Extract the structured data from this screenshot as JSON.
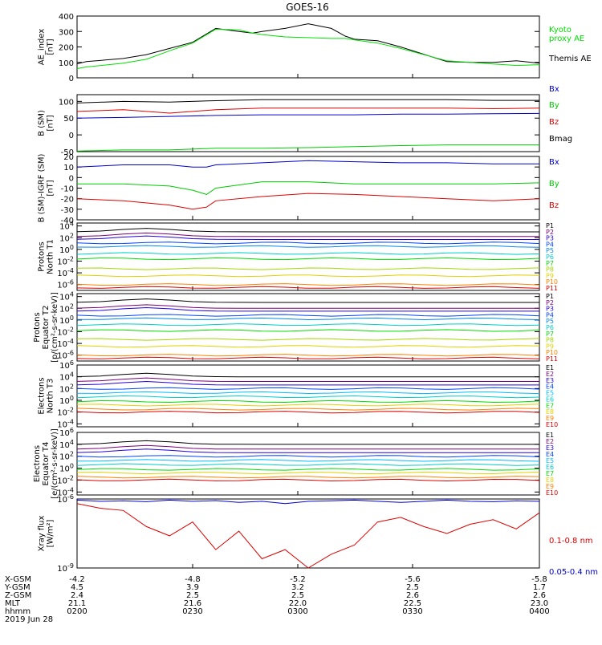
{
  "title": "GOES-16",
  "chart_data": [
    {
      "type": "line",
      "panel": "ae",
      "ylabel": [
        "AE_index",
        "[nT]"
      ],
      "ylim": [
        0,
        400
      ],
      "yticks": [
        "0",
        "100",
        "200",
        "300",
        "400"
      ],
      "x": [
        0,
        0.02,
        0.1,
        0.15,
        0.2,
        0.25,
        0.3,
        0.35,
        0.38,
        0.4,
        0.45,
        0.5,
        0.55,
        0.58,
        0.6,
        0.65,
        0.7,
        0.8,
        0.85,
        0.9,
        0.95,
        1
      ],
      "series": [
        {
          "name": "Themis AE",
          "color": "#000000",
          "labelY": 76,
          "values": [
            90,
            105,
            125,
            150,
            190,
            230,
            320,
            300,
            290,
            300,
            320,
            350,
            320,
            270,
            250,
            240,
            200,
            105,
            100,
            100,
            110,
            95
          ]
        },
        {
          "name": "Kyoto proxy AE",
          "color": "#00e000",
          "labelY": 40,
          "labelLines": [
            "Kyoto",
            "proxy AE"
          ],
          "values": [
            60,
            70,
            95,
            120,
            175,
            225,
            315,
            310,
            290,
            280,
            265,
            260,
            255,
            255,
            245,
            225,
            190,
            110,
            100,
            90,
            80,
            85
          ]
        }
      ]
    },
    {
      "type": "line",
      "panel": "bsm",
      "ylabel": [
        "B (SM)",
        "[nT]"
      ],
      "ylim": [
        -50,
        120
      ],
      "yticks": [
        "-50",
        "0",
        "50",
        "100"
      ],
      "x": [
        0,
        0.1,
        0.2,
        0.3,
        0.4,
        0.5,
        0.6,
        0.7,
        0.8,
        0.9,
        1
      ],
      "series": [
        {
          "name": "Bx",
          "color": "#0000cc",
          "labelY": 114,
          "values": [
            50,
            52,
            55,
            58,
            60,
            60,
            60,
            62,
            62,
            63,
            64
          ]
        },
        {
          "name": "By",
          "color": "#00cc00",
          "labelY": 134,
          "values": [
            -48,
            -45,
            -45,
            -40,
            -40,
            -38,
            -35,
            -32,
            -30,
            -30,
            -30
          ]
        },
        {
          "name": "Bz",
          "color": "#dd0000",
          "labelY": 155,
          "values": [
            70,
            75,
            65,
            75,
            80,
            80,
            80,
            80,
            80,
            78,
            80
          ]
        },
        {
          "name": "Bmag",
          "color": "#000000",
          "labelY": 176,
          "values": [
            95,
            100,
            98,
            102,
            105,
            105,
            105,
            105,
            105,
            103,
            103
          ]
        }
      ]
    },
    {
      "type": "line",
      "panel": "digrf",
      "ylabel": [
        "B (SM)-IGRF (SM)",
        "[nT]"
      ],
      "ylim": [
        -40,
        20
      ],
      "yticks": [
        "-40",
        "-30",
        "-20",
        "-10",
        "0",
        "10",
        "20"
      ],
      "x": [
        0,
        0.1,
        0.2,
        0.25,
        0.28,
        0.3,
        0.4,
        0.5,
        0.6,
        0.7,
        0.8,
        0.9,
        1
      ],
      "series": [
        {
          "name": "Bx",
          "color": "#0000cc",
          "labelY": 205,
          "values": [
            10,
            12,
            12,
            10,
            10,
            12,
            14,
            16,
            15,
            14,
            14,
            13,
            13
          ]
        },
        {
          "name": "By",
          "color": "#00cc00",
          "labelY": 232,
          "values": [
            -6,
            -6,
            -8,
            -12,
            -16,
            -10,
            -4,
            -4,
            -6,
            -6,
            -6,
            -6,
            -5
          ]
        },
        {
          "name": "Bz",
          "color": "#dd0000",
          "labelY": 259,
          "values": [
            -20,
            -22,
            -26,
            -30,
            -28,
            -22,
            -18,
            -15,
            -16,
            -18,
            -20,
            -22,
            -20
          ]
        }
      ]
    },
    {
      "type": "line",
      "panel": "p1",
      "ylabel": [
        "Protons",
        "North T1"
      ],
      "log": true,
      "ylim": [
        -7,
        4.5
      ],
      "yticks": [
        "10^4",
        "10^2",
        "10^0",
        "10^-2",
        "10^-4",
        "10^-6"
      ],
      "labels": [
        "P1",
        "P2",
        "P3",
        "P4",
        "P5",
        "P6",
        "P7",
        "P8",
        "P9",
        "P10",
        "P11"
      ],
      "colors": [
        "#000000",
        "#7a007a",
        "#2200dd",
        "#0044ff",
        "#0088ee",
        "#00cccc",
        "#00dd00",
        "#a0d800",
        "#e0d000",
        "#ff8000",
        "#dd0000"
      ],
      "levels": [
        3,
        2.2,
        1.7,
        1.1,
        0.5,
        -0.7,
        -1.6,
        -3.3,
        -4.5,
        -6,
        -6.5
      ]
    },
    {
      "type": "line",
      "panel": "p2",
      "ylabel": [
        "Protons",
        "Equator T2",
        "[p/(cm²-s-sr-keV)]"
      ],
      "log": true,
      "ylim": [
        -7,
        4.5
      ],
      "yticks": [
        "10^4",
        "10^2",
        "10^0",
        "10^-2",
        "10^-4",
        "10^-6"
      ],
      "labels": [
        "P1",
        "P2",
        "P3",
        "P4",
        "P5",
        "P6",
        "P7",
        "P8",
        "P9",
        "P10",
        "P11"
      ],
      "colors": [
        "#000000",
        "#7a007a",
        "#2200dd",
        "#0044ff",
        "#0088ee",
        "#00cccc",
        "#00dd00",
        "#a0d800",
        "#e0d000",
        "#ff8000",
        "#dd0000"
      ],
      "levels": [
        3,
        2,
        1.5,
        0.8,
        0.2,
        -0.8,
        -1.8,
        -3.3,
        -4.5,
        -6,
        -6.5
      ]
    },
    {
      "type": "line",
      "panel": "e1",
      "ylabel": [
        "Electrons",
        "North T3"
      ],
      "log": true,
      "ylim": [
        -4.5,
        6
      ],
      "yticks": [
        "10^6",
        "10^4",
        "10^2",
        "10^0",
        "10^-2",
        "10^-4"
      ],
      "labels": [
        "E1",
        "E2",
        "E3",
        "E4",
        "E5",
        "E6",
        "E7",
        "E8",
        "E9",
        "E10"
      ],
      "colors": [
        "#000000",
        "#7a007a",
        "#2200dd",
        "#0044ff",
        "#00bbff",
        "#00cccc",
        "#00dd00",
        "#e0d000",
        "#ff8000",
        "#dd0000"
      ],
      "levels": [
        4,
        3.2,
        2.6,
        2,
        1.3,
        0.6,
        -0.2,
        -0.8,
        -1.5,
        -2
      ]
    },
    {
      "type": "line",
      "panel": "e2",
      "ylabel": [
        "Electrons",
        "Equator T4",
        "[e/(cm²-s-sr-keV)]"
      ],
      "log": true,
      "ylim": [
        -4.5,
        6
      ],
      "yticks": [
        "10^6",
        "10^4",
        "10^2",
        "10^0",
        "10^-2",
        "10^-4"
      ],
      "labels": [
        "E1",
        "E2",
        "E3",
        "E4",
        "E5",
        "E6",
        "E7",
        "E8",
        "E9",
        "E10"
      ],
      "colors": [
        "#000000",
        "#7a007a",
        "#2200dd",
        "#0044ff",
        "#00bbff",
        "#00cccc",
        "#00dd00",
        "#e0d000",
        "#ff8000",
        "#dd0000"
      ],
      "levels": [
        4,
        3.2,
        2.6,
        2,
        1.3,
        0.6,
        -0.2,
        -0.8,
        -1.5,
        -2
      ]
    },
    {
      "type": "line",
      "panel": "xray",
      "ylabel": [
        "Xray flux",
        "[W/m²]"
      ],
      "log": true,
      "ylim": [
        -9,
        -6
      ],
      "yticks": [
        "10^-6",
        "10^-9"
      ],
      "x": [
        0,
        0.05,
        0.1,
        0.15,
        0.2,
        0.25,
        0.3,
        0.35,
        0.4,
        0.45,
        0.5,
        0.55,
        0.6,
        0.65,
        0.7,
        0.75,
        0.8,
        0.85,
        0.9,
        0.95,
        1
      ],
      "series": [
        {
          "name": "0.1-0.8 nm",
          "color": "#dd0000",
          "labelY": 677,
          "values": [
            -6.2,
            -6.4,
            -6.5,
            -7.2,
            -7.6,
            -7.0,
            -8.2,
            -7.4,
            -8.6,
            -8.2,
            -9.0,
            -8.4,
            -8.0,
            -7.0,
            -6.8,
            -7.2,
            -7.5,
            -7.1,
            -6.9,
            -7.3,
            -6.6
          ]
        },
        {
          "name": "0.05-0.4 nm",
          "color": "#0000cc",
          "labelY": 716,
          "values": [
            -6.05,
            -6.1,
            -6.08,
            -6.12,
            -6.05,
            -6.1,
            -6.07,
            -6.15,
            -6.1,
            -6.2,
            -6.1,
            -6.08,
            -6.05,
            -6.1,
            -6.15,
            -6.1,
            -6.05,
            -6.1,
            -6.12,
            -6.08,
            -6.1
          ]
        }
      ]
    }
  ],
  "xaxis": {
    "rows": [
      {
        "label": "X-GSM",
        "values": [
          "-4.2",
          "-4.8",
          "-5.2",
          "-5.6",
          "-5.8"
        ]
      },
      {
        "label": "Y-GSM",
        "values": [
          "4.5",
          "3.9",
          "3.2",
          "2.5",
          "1.7"
        ]
      },
      {
        "label": "Z-GSM",
        "values": [
          "2.4",
          "2.5",
          "2.5",
          "2.6",
          "2.6"
        ]
      },
      {
        "label": "MLT",
        "values": [
          "21.1",
          "21.6",
          "22.0",
          "22.5",
          "23.0"
        ]
      },
      {
        "label": "hhmm",
        "values": [
          "0200",
          "0230",
          "0300",
          "0330",
          "0400"
        ]
      }
    ],
    "date": "2019 Jun 28"
  }
}
